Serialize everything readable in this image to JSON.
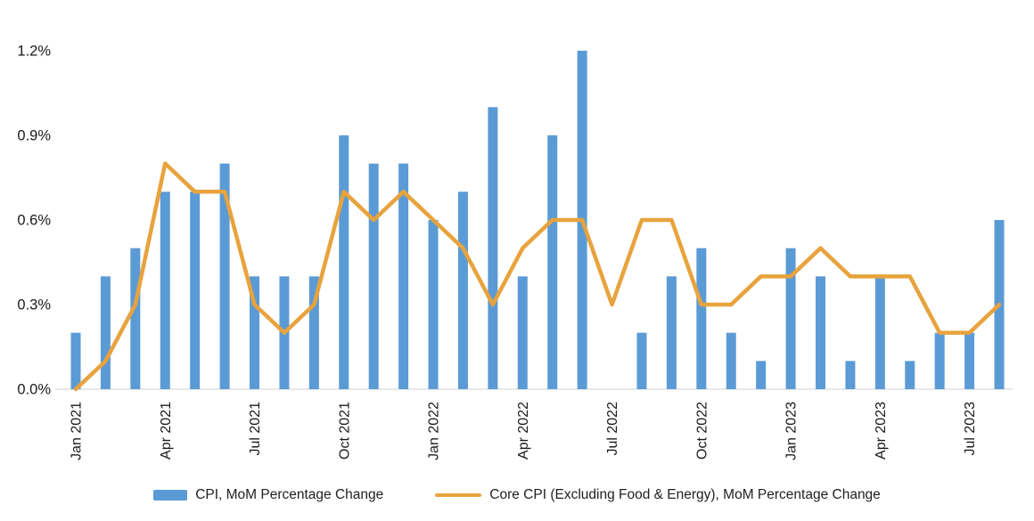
{
  "chart_data": {
    "type": "combo",
    "title": "",
    "xlabel": "",
    "ylabel": "",
    "grid": false,
    "legend_position": "bottom",
    "background_color": "#FFFFFF",
    "axis_line_color": "#D9D9D9",
    "text_color": "#1A1A1A",
    "ylim": [
      0,
      1.3
    ],
    "yticks": [
      0,
      0.3,
      0.6,
      0.9,
      1.2
    ],
    "ytick_labels": [
      "0.0%",
      "0.3%",
      "0.6%",
      "0.9%",
      "1.2%"
    ],
    "x_tick_labels": [
      "Jan 2021",
      "Apr 2021",
      "Jul 2021",
      "Oct 2021",
      "Jan 2022",
      "Apr 2022",
      "Jul 2022",
      "Oct 2022",
      "Jan 2023",
      "Apr 2023",
      "Jul 2023"
    ],
    "x_tick_every": 3,
    "categories": [
      "Jan 2021",
      "Feb 2021",
      "Mar 2021",
      "Apr 2021",
      "May 2021",
      "Jun 2021",
      "Jul 2021",
      "Aug 2021",
      "Sep 2021",
      "Oct 2021",
      "Nov 2021",
      "Dec 2021",
      "Jan 2022",
      "Feb 2022",
      "Mar 2022",
      "Apr 2022",
      "May 2022",
      "Jun 2022",
      "Jul 2022",
      "Aug 2022",
      "Sep 2022",
      "Oct 2022",
      "Nov 2022",
      "Dec 2022",
      "Jan 2023",
      "Feb 2023",
      "Mar 2023",
      "Apr 2023",
      "May 2023",
      "Jun 2023",
      "Jul 2023",
      "Aug 2023"
    ],
    "series": [
      {
        "name": "CPI, MoM Percentage Change",
        "type": "bar",
        "color": "#5B9BD5",
        "unit": "%",
        "values": [
          0.2,
          0.4,
          0.5,
          0.7,
          0.7,
          0.8,
          0.4,
          0.4,
          0.4,
          0.9,
          0.8,
          0.8,
          0.6,
          0.7,
          1.0,
          0.4,
          0.9,
          1.2,
          0.0,
          0.2,
          0.4,
          0.5,
          0.2,
          0.1,
          0.5,
          0.4,
          0.1,
          0.4,
          0.1,
          0.2,
          0.2,
          0.6
        ]
      },
      {
        "name": "Core CPI (Excluding Food & Energy), MoM Percentage Change",
        "type": "line",
        "color": "#E8A33D",
        "unit": "%",
        "values": [
          0.0,
          0.1,
          0.3,
          0.8,
          0.7,
          0.7,
          0.3,
          0.2,
          0.3,
          0.7,
          0.6,
          0.7,
          0.6,
          0.5,
          0.3,
          0.5,
          0.6,
          0.6,
          0.3,
          0.6,
          0.6,
          0.3,
          0.3,
          0.4,
          0.4,
          0.5,
          0.4,
          0.4,
          0.4,
          0.2,
          0.2,
          0.3
        ]
      }
    ]
  }
}
